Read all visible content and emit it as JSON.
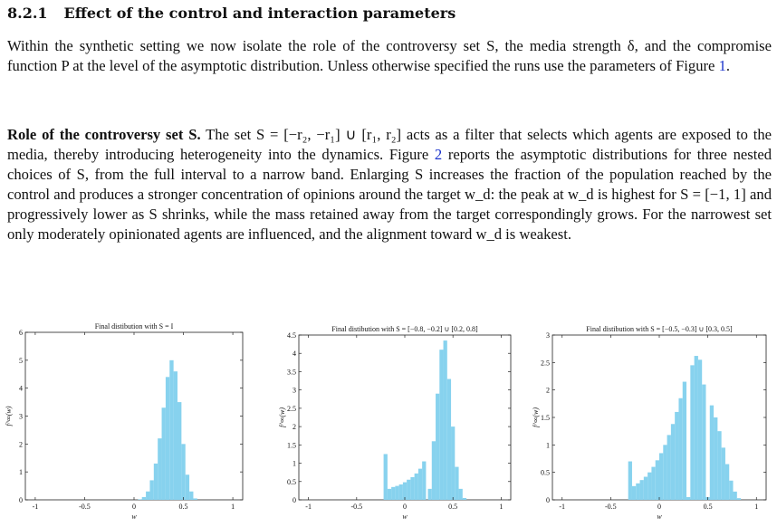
{
  "section": {
    "number": "8.2.1",
    "title": "Effect of the control and interaction parameters"
  },
  "paragraph1": {
    "text_a": "Within the synthetic setting we now isolate the role of the controversy set S, the media strength δ, and the compromise function P at the level of the asymptotic distribution. Unless otherwise specified the runs use the parameters of Figure ",
    "figure_ref": "1",
    "text_b": "."
  },
  "paragraph2": {
    "runin": "Role of the controversy set S.",
    "text_a": " The set S = [−r₂, −r₁] ∪ [r₁, r₂] acts as a filter that selects which agents are exposed to the media, thereby introducing heterogeneity into the dynamics. Figure ",
    "figure_ref": "2",
    "text_b": " reports the asymptotic distributions for three nested choices of S, from the full interval to a narrow band. Enlarging S increases the fraction of the population reached by the control and produces a stronger concentration of opinions around the target w_d: the peak at w_d is highest for S = [−1, 1] and progressively lower as S shrinks, while the mass retained away from the target correspondingly grows. For the narrowest set only moderately opinionated agents are influenced, and the alignment toward w_d is weakest."
  },
  "chart_data": [
    {
      "type": "bar",
      "title": "Final distibution with S = I",
      "xlabel": "w",
      "ylabel": "f^∞(w)",
      "xlim": [
        -1.1,
        1.1
      ],
      "ylim": [
        0,
        6
      ],
      "xticks": [
        "-1",
        "-0.5",
        "0",
        "0.5",
        "1"
      ],
      "yticks": [
        "0",
        "1",
        "2",
        "3",
        "4",
        "5",
        "6"
      ],
      "bar_color": "#87d2ee",
      "x": [
        0.06,
        0.1,
        0.14,
        0.18,
        0.22,
        0.26,
        0.3,
        0.34,
        0.38,
        0.42,
        0.46,
        0.5,
        0.54,
        0.58,
        0.62
      ],
      "values": [
        0.02,
        0.1,
        0.3,
        0.7,
        1.3,
        2.2,
        3.3,
        4.4,
        5.0,
        4.6,
        3.5,
        2.0,
        0.9,
        0.3,
        0.05
      ]
    },
    {
      "type": "bar",
      "title": "Final distibution with S = [−0.8, −0.2] ∪ [0.2, 0.8]",
      "xlabel": "w",
      "ylabel": "f^∞(w)",
      "xlim": [
        -1.1,
        1.1
      ],
      "ylim": [
        0,
        4.5
      ],
      "xticks": [
        "-1",
        "-0.5",
        "0",
        "0.5",
        "1"
      ],
      "yticks": [
        "0",
        "0.5",
        "1",
        "1.5",
        "2",
        "2.5",
        "3",
        "3.5",
        "4",
        "4.5"
      ],
      "bar_color": "#87d2ee",
      "x": [
        -0.2,
        -0.16,
        -0.12,
        -0.08,
        -0.04,
        0.0,
        0.04,
        0.08,
        0.12,
        0.16,
        0.2,
        0.26,
        0.3,
        0.34,
        0.38,
        0.42,
        0.46,
        0.5,
        0.54,
        0.58,
        0.62
      ],
      "values": [
        1.25,
        0.3,
        0.35,
        0.38,
        0.42,
        0.48,
        0.55,
        0.62,
        0.72,
        0.85,
        1.05,
        0.3,
        1.6,
        2.9,
        4.1,
        4.35,
        3.3,
        2.0,
        0.9,
        0.3,
        0.05
      ]
    },
    {
      "type": "bar",
      "title": "Final distibution with S = [−0.5, −0.3] ∪ [0.3, 0.5]",
      "xlabel": "w",
      "ylabel": "f^∞(w)",
      "xlim": [
        -1.1,
        1.1
      ],
      "ylim": [
        0,
        3
      ],
      "xticks": [
        "-1",
        "-0.5",
        "0",
        "0.5",
        "1"
      ],
      "yticks": [
        "0",
        "0.5",
        "1",
        "1.5",
        "2",
        "2.5",
        "3"
      ],
      "bar_color": "#87d2ee",
      "x": [
        -0.3,
        -0.26,
        -0.22,
        -0.18,
        -0.14,
        -0.1,
        -0.06,
        -0.02,
        0.02,
        0.06,
        0.1,
        0.14,
        0.18,
        0.22,
        0.26,
        0.3,
        0.34,
        0.38,
        0.42,
        0.46,
        0.5,
        0.54,
        0.58,
        0.62,
        0.66,
        0.7,
        0.74,
        0.78,
        0.82
      ],
      "values": [
        0.7,
        0.25,
        0.3,
        0.36,
        0.42,
        0.5,
        0.6,
        0.72,
        0.85,
        1.0,
        1.18,
        1.38,
        1.6,
        1.85,
        2.15,
        0.05,
        2.45,
        2.62,
        2.55,
        2.1,
        0.05,
        1.72,
        1.5,
        1.25,
        0.95,
        0.65,
        0.35,
        0.15,
        0.03
      ]
    }
  ]
}
